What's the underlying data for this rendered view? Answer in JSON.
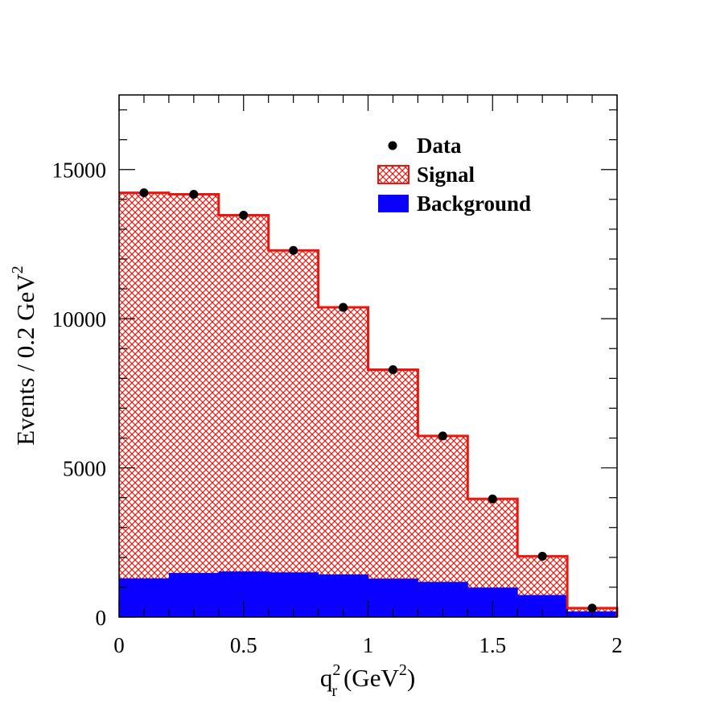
{
  "chart_data": {
    "type": "bar",
    "title": "",
    "xlabel": {
      "base": "q",
      "sup": "2",
      "sub": "r",
      "unit_open": "(GeV",
      "unit_sup": "2",
      "unit_close": ")"
    },
    "ylabel": {
      "text": "Events / 0.2 GeV",
      "sup": "2"
    },
    "xlim": [
      0,
      2
    ],
    "ylim": [
      0,
      17500
    ],
    "x_ticks": [
      {
        "value": 0,
        "label": "0"
      },
      {
        "value": 0.5,
        "label": "0.5"
      },
      {
        "value": 1,
        "label": "1"
      },
      {
        "value": 1.5,
        "label": "1.5"
      },
      {
        "value": 2,
        "label": "2"
      }
    ],
    "y_ticks": [
      {
        "value": 0,
        "label": "0"
      },
      {
        "value": 5000,
        "label": "5000"
      },
      {
        "value": 10000,
        "label": "10000"
      },
      {
        "value": 15000,
        "label": "15000"
      }
    ],
    "bin_edges": [
      0,
      0.2,
      0.4,
      0.6,
      0.8,
      1.0,
      1.2,
      1.4,
      1.6,
      1.8,
      2.0
    ],
    "bin_centers": [
      0.1,
      0.3,
      0.5,
      0.7,
      0.9,
      1.1,
      1.3,
      1.5,
      1.7,
      1.9
    ],
    "series": [
      {
        "name": "Data",
        "style": "points",
        "values": [
          14220,
          14170,
          13470,
          12290,
          10380,
          8290,
          6070,
          3960,
          2040,
          300
        ]
      },
      {
        "name": "Signal",
        "style": "hatched-histogram",
        "color": "#e8170f",
        "values": [
          14220,
          14170,
          13470,
          12290,
          10380,
          8290,
          6070,
          3960,
          2040,
          300
        ]
      },
      {
        "name": "Background",
        "style": "filled-histogram",
        "color": "#0a00ff",
        "values": [
          1300,
          1480,
          1530,
          1500,
          1430,
          1290,
          1180,
          990,
          740,
          190
        ]
      }
    ],
    "legend": {
      "position": "top-right",
      "entries": [
        {
          "name": "Data",
          "marker": "dot"
        },
        {
          "name": "Signal",
          "marker": "hatch-box"
        },
        {
          "name": "Background",
          "marker": "solid-box"
        }
      ]
    },
    "grid": false
  }
}
